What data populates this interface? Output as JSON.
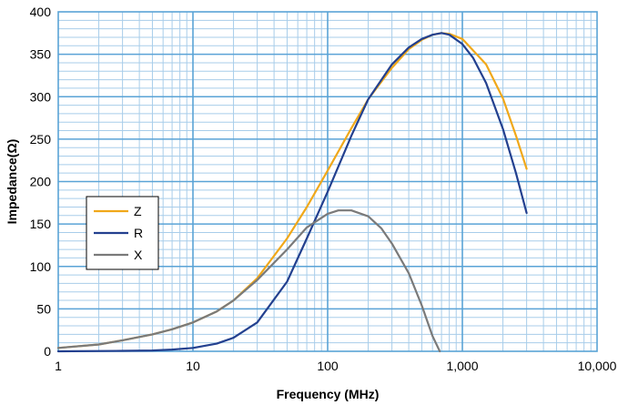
{
  "chart_data": {
    "type": "line",
    "xscale": "log",
    "xlabel": "Frequency (MHz)",
    "ylabel": "Impedance(Ω)",
    "xlim": [
      1,
      10000
    ],
    "ylim": [
      0,
      400
    ],
    "x_ticks": [
      "1",
      "10",
      "100",
      "1,000",
      "10,000"
    ],
    "y_ticks": [
      "0",
      "50",
      "100",
      "150",
      "200",
      "250",
      "300",
      "350",
      "400"
    ],
    "grid": true,
    "legend_position": "middle-left",
    "series": [
      {
        "name": "Z",
        "color": "#f0a81a",
        "points": [
          [
            1,
            4
          ],
          [
            2,
            8
          ],
          [
            3,
            13
          ],
          [
            5,
            20
          ],
          [
            7,
            26
          ],
          [
            10,
            34
          ],
          [
            15,
            47
          ],
          [
            20,
            60
          ],
          [
            30,
            86
          ],
          [
            50,
            133
          ],
          [
            70,
            170
          ],
          [
            100,
            213
          ],
          [
            150,
            263
          ],
          [
            200,
            297
          ],
          [
            300,
            334
          ],
          [
            400,
            356
          ],
          [
            500,
            367
          ],
          [
            600,
            373
          ],
          [
            700,
            375
          ],
          [
            800,
            374
          ],
          [
            1000,
            368
          ],
          [
            1500,
            338
          ],
          [
            2000,
            298
          ],
          [
            2500,
            254
          ],
          [
            3000,
            215
          ]
        ]
      },
      {
        "name": "R",
        "color": "#23408f",
        "points": [
          [
            1,
            0
          ],
          [
            3,
            0.5
          ],
          [
            5,
            1
          ],
          [
            7,
            2
          ],
          [
            10,
            4
          ],
          [
            15,
            9
          ],
          [
            20,
            16
          ],
          [
            30,
            34
          ],
          [
            50,
            82
          ],
          [
            70,
            133
          ],
          [
            100,
            188
          ],
          [
            150,
            254
          ],
          [
            200,
            297
          ],
          [
            300,
            338
          ],
          [
            400,
            358
          ],
          [
            500,
            368
          ],
          [
            600,
            373
          ],
          [
            700,
            375
          ],
          [
            800,
            373
          ],
          [
            1000,
            362
          ],
          [
            1200,
            346
          ],
          [
            1500,
            316
          ],
          [
            2000,
            262
          ],
          [
            2500,
            210
          ],
          [
            3000,
            163
          ]
        ]
      },
      {
        "name": "X",
        "color": "#7a7a7a",
        "points": [
          [
            1,
            4
          ],
          [
            2,
            8
          ],
          [
            3,
            13
          ],
          [
            5,
            20
          ],
          [
            7,
            26
          ],
          [
            10,
            34
          ],
          [
            15,
            47
          ],
          [
            20,
            60
          ],
          [
            30,
            84
          ],
          [
            50,
            120
          ],
          [
            70,
            146
          ],
          [
            100,
            162
          ],
          [
            120,
            166
          ],
          [
            150,
            166
          ],
          [
            200,
            159
          ],
          [
            250,
            145
          ],
          [
            300,
            127
          ],
          [
            400,
            92
          ],
          [
            500,
            54
          ],
          [
            600,
            18
          ],
          [
            680,
            0
          ]
        ]
      }
    ]
  }
}
